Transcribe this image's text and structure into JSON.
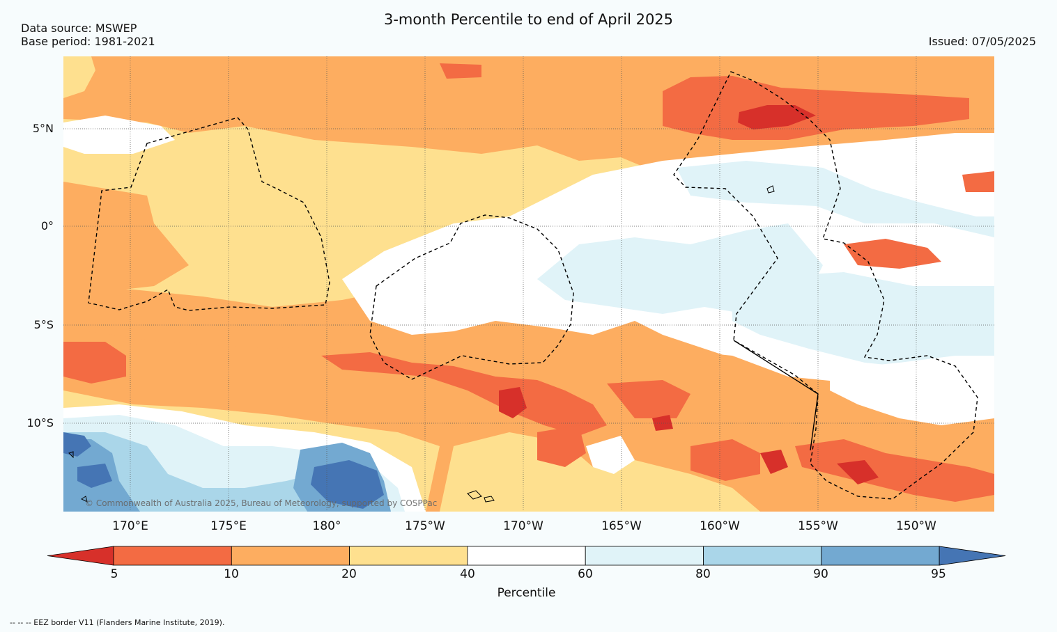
{
  "header": {
    "title": "3-month Percentile to end of April 2025",
    "data_source": "Data source: MSWEP",
    "base_period": "Base period: 1981-2021",
    "issued": "Issued: 07/05/2025"
  },
  "map": {
    "latitude_labels": [
      "5°N",
      "0°",
      "5°S",
      "10°S"
    ],
    "longitude_labels": [
      "170°E",
      "175°E",
      "180°",
      "175°W",
      "170°W",
      "165°W",
      "160°W",
      "155°W",
      "150°W"
    ],
    "copyright": "© Commonwealth of Australia 2025, Bureau of Meteorology, supported by COSPPac"
  },
  "colorbar": {
    "tick_labels": [
      "5",
      "10",
      "20",
      "40",
      "60",
      "80",
      "90",
      "95"
    ],
    "label": "Percentile",
    "bins": [
      {
        "range": "<5",
        "color": "#d7302a"
      },
      {
        "range": "5-10",
        "color": "#f36b43"
      },
      {
        "range": "10-20",
        "color": "#fdad60"
      },
      {
        "range": "20-40",
        "color": "#fee08f"
      },
      {
        "range": "40-60",
        "color": "#ffffff"
      },
      {
        "range": "60-80",
        "color": "#e0f3f8"
      },
      {
        "range": "80-90",
        "color": "#aad6e9"
      },
      {
        "range": "90-95",
        "color": "#73a9d1"
      },
      {
        "range": ">95",
        "color": "#4575b4"
      }
    ]
  },
  "footer": {
    "eez_note": "--  --  -- EEZ border V11 (Flanders Marine Institute, 2019)."
  }
}
